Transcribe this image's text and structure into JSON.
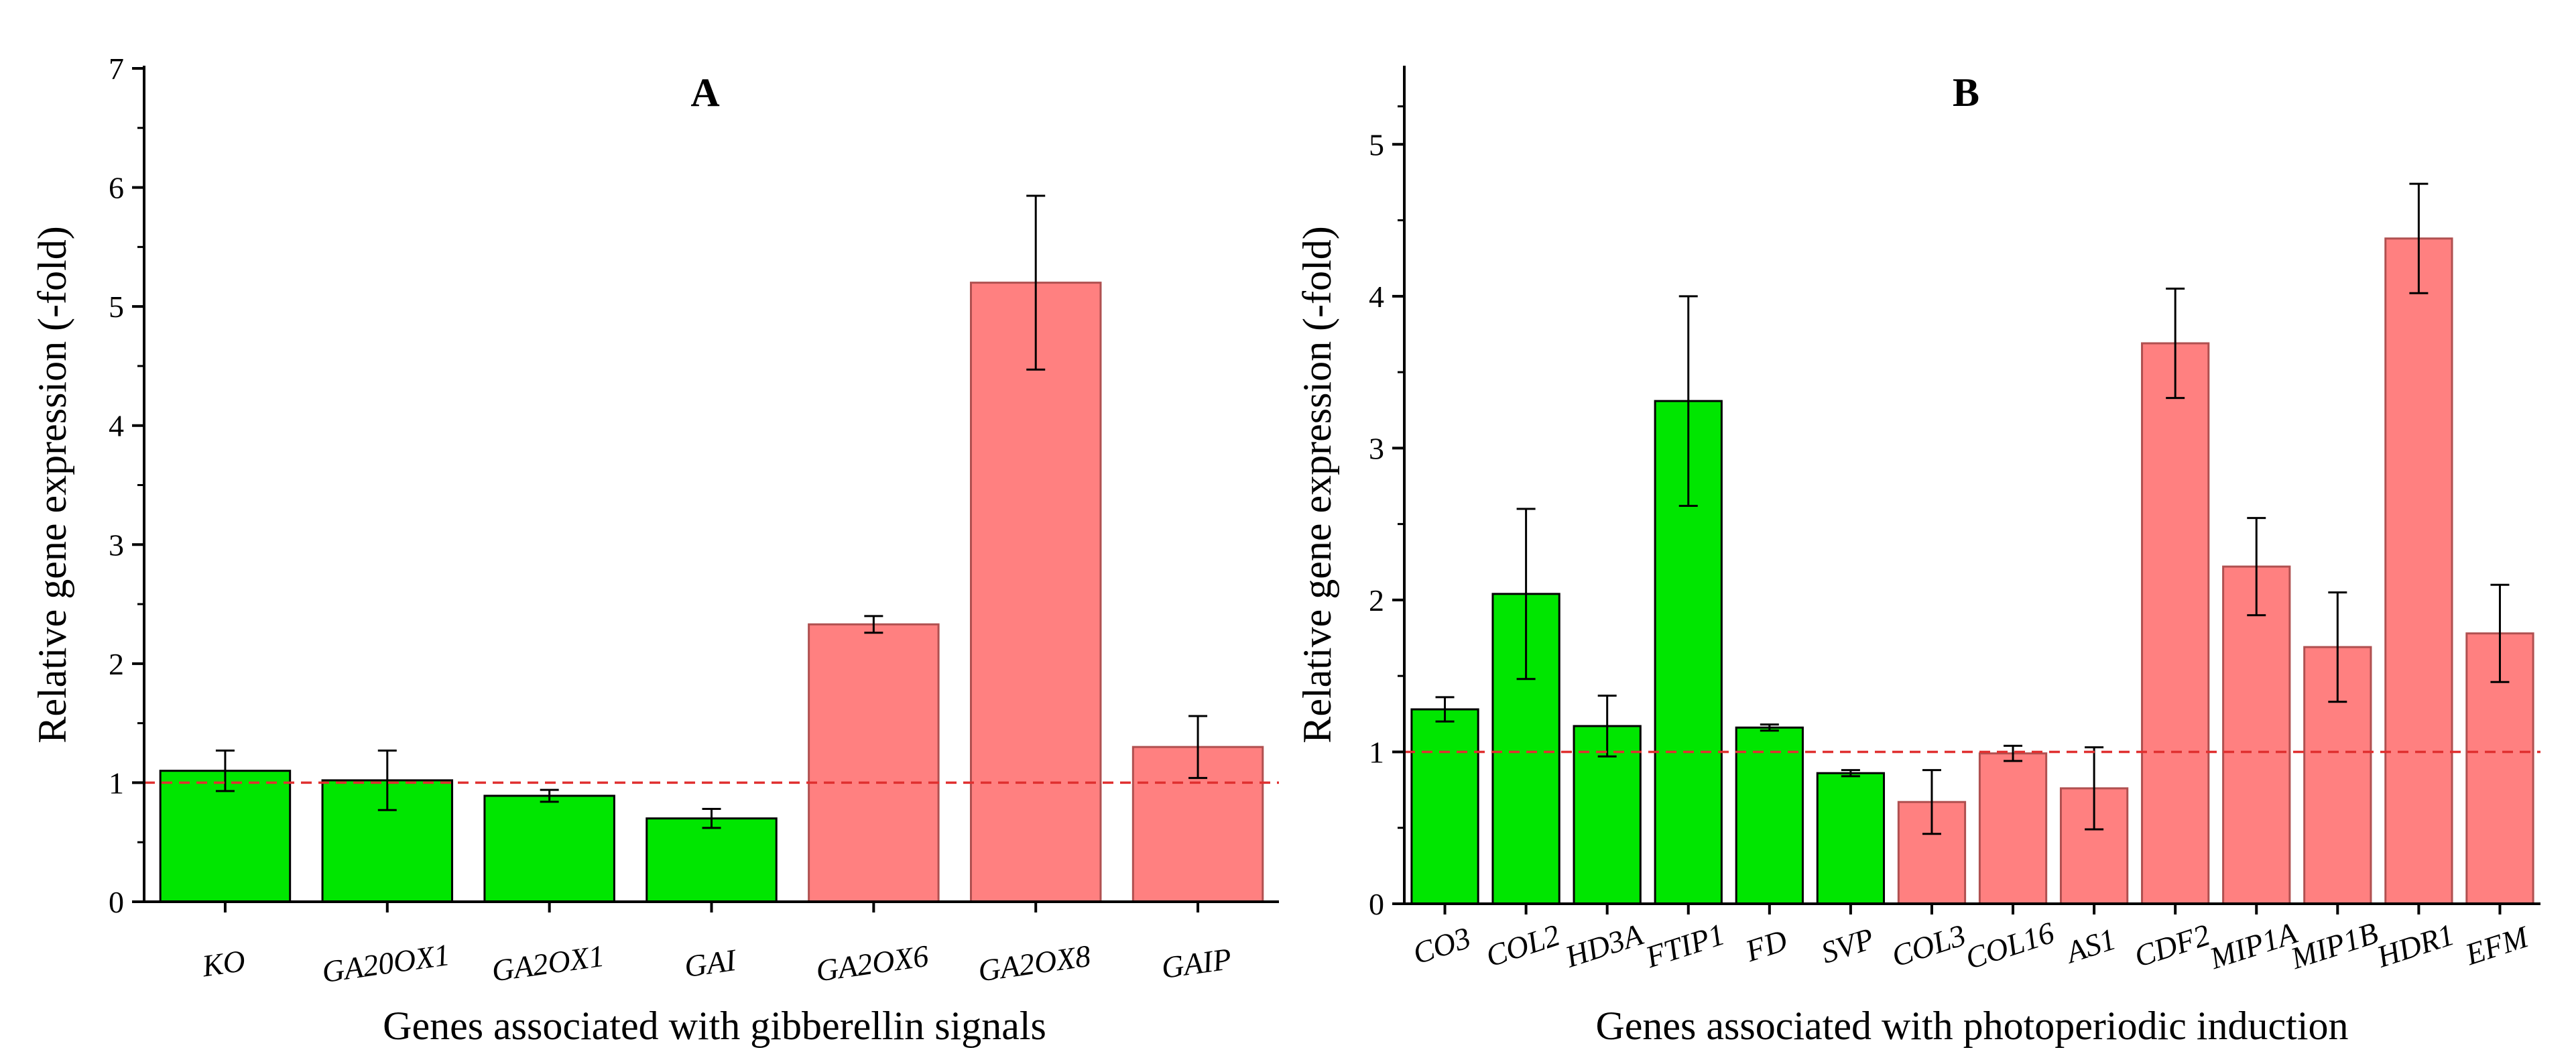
{
  "chart_data": [
    {
      "type": "bar",
      "title": "A",
      "xlabel": "Genes associated with gibberellin signals",
      "ylabel": "Relative gene expression (-fold)",
      "ylim": [
        0,
        7
      ],
      "yticks": [
        "0",
        "1",
        "2",
        "3",
        "4",
        "5",
        "6",
        "7"
      ],
      "reference_line": 1,
      "categories": [
        "KO",
        "GA20OX1",
        "GA2OX1",
        "GAI",
        "GA2OX6",
        "GA2OX8",
        "GAIP"
      ],
      "values": [
        1.1,
        1.02,
        0.89,
        0.7,
        2.33,
        5.2,
        1.3
      ],
      "errors": [
        0.17,
        0.25,
        0.05,
        0.08,
        0.07,
        0.73,
        0.26
      ],
      "bar_colors": [
        "#00e600",
        "#00e600",
        "#00e600",
        "#00e600",
        "#ff8080",
        "#ff8080",
        "#ff8080"
      ]
    },
    {
      "type": "bar",
      "title": "B",
      "xlabel": "Genes associated with photoperiodic induction",
      "ylabel": "Relative gene expression (-fold)",
      "ylim": [
        0,
        5.5
      ],
      "yticks": [
        "0",
        "1",
        "2",
        "3",
        "4",
        "5"
      ],
      "reference_line": 1,
      "categories": [
        "CO3",
        "COL2",
        "HD3A",
        "FTIP1",
        "FD",
        "SVP",
        "COL3",
        "COL16",
        "AS1",
        "CDF2",
        "MIP1A",
        "MIP1B",
        "HDR1",
        "EFM"
      ],
      "values": [
        1.28,
        2.04,
        1.17,
        3.31,
        1.16,
        0.86,
        0.67,
        0.99,
        0.76,
        3.69,
        2.22,
        1.69,
        4.38,
        1.78
      ],
      "errors": [
        0.08,
        0.56,
        0.2,
        0.69,
        0.02,
        0.02,
        0.21,
        0.05,
        0.27,
        0.36,
        0.32,
        0.36,
        0.36,
        0.32
      ],
      "bar_colors": [
        "#00e600",
        "#00e600",
        "#00e600",
        "#00e600",
        "#00e600",
        "#00e600",
        "#ff8080",
        "#ff8080",
        "#ff8080",
        "#ff8080",
        "#ff8080",
        "#ff8080",
        "#ff8080",
        "#ff8080"
      ]
    }
  ],
  "colors": {
    "upregulated_bar": "#ff8080",
    "downregulated_bar": "#00e600",
    "reference_line": "#e03030",
    "axis": "#000000"
  }
}
